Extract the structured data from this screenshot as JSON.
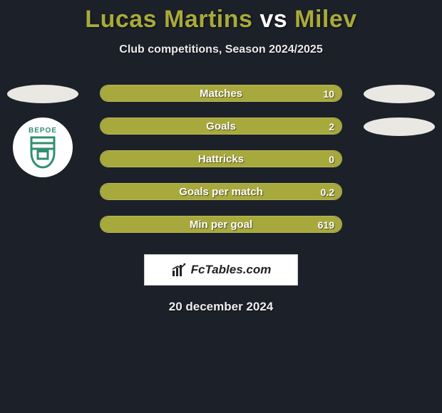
{
  "title": {
    "player1": "Lucas Martins",
    "vs": "vs",
    "player2": "Milev"
  },
  "subtitle": "Club competitions, Season 2024/2025",
  "colors": {
    "background": "#1c2028",
    "accent": "#a8a93d",
    "bar_border": "#b8b95a",
    "ellipse": "#e9e8e3",
    "badge_bg": "#ffffff",
    "badge_accent": "#2f8f6f"
  },
  "stats": [
    {
      "label": "Matches",
      "value": "10",
      "fill_pct": 100
    },
    {
      "label": "Goals",
      "value": "2",
      "fill_pct": 100
    },
    {
      "label": "Hattricks",
      "value": "0",
      "fill_pct": 100
    },
    {
      "label": "Goals per match",
      "value": "0.2",
      "fill_pct": 100
    },
    {
      "label": "Min per goal",
      "value": "619",
      "fill_pct": 100
    }
  ],
  "left_side": {
    "ellipse": true,
    "badge": {
      "text": "BEPOE"
    }
  },
  "right_side": {
    "ellipses": 2
  },
  "brand": "FcTables.com",
  "date": "20 december 2024"
}
